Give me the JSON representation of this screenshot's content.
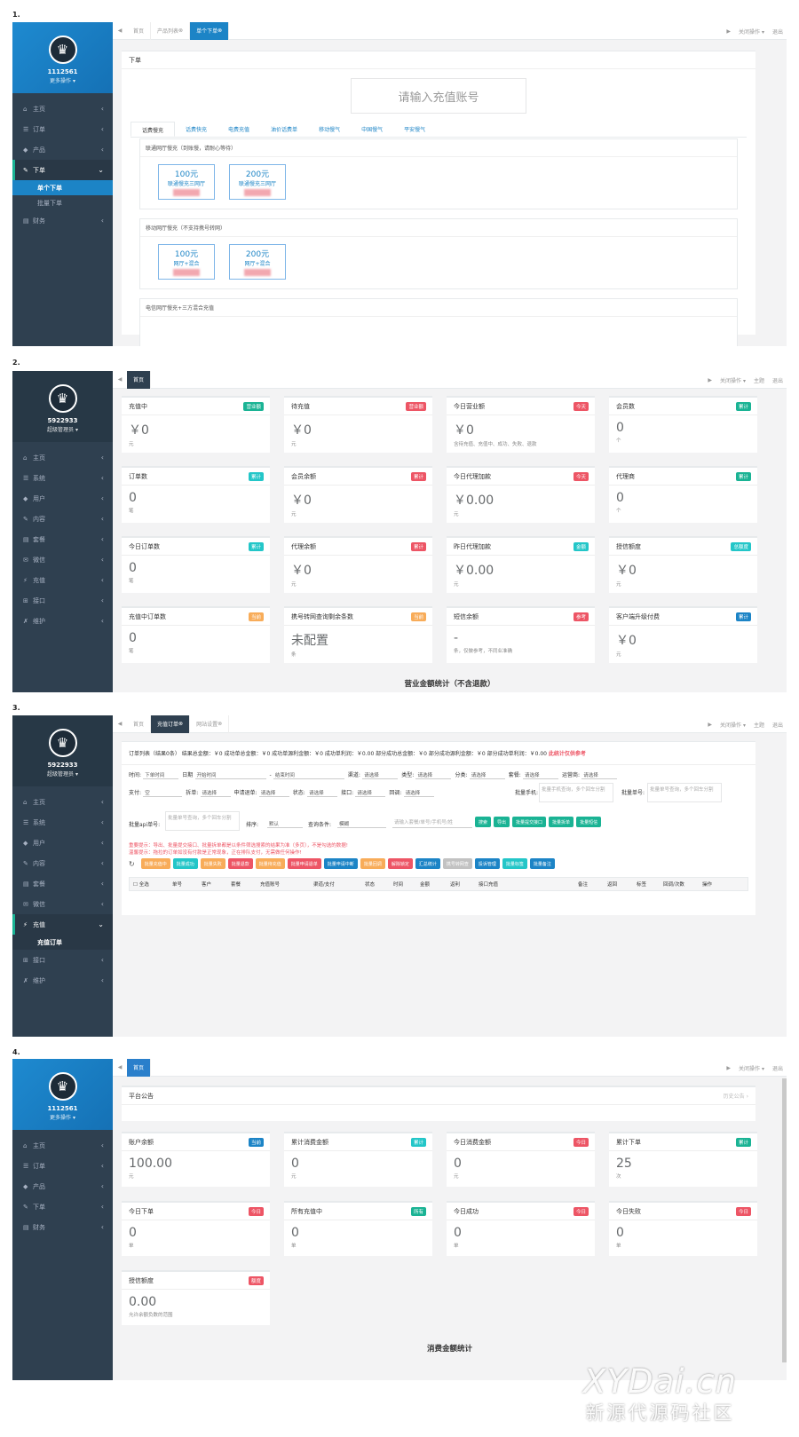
{
  "labels": [
    "1.",
    "2.",
    "3.",
    "4."
  ],
  "p1": {
    "user": "1112561",
    "role": "更多操作",
    "menu": [
      "主页",
      "订单",
      "产品",
      "下单",
      "财务"
    ],
    "sub": [
      "单个下单",
      "批量下单"
    ],
    "tabs": [
      "首页",
      "产品列表",
      "单个下单"
    ],
    "right": [
      "关闭操作",
      "退出"
    ],
    "card_title": "下单",
    "placeholder": "请输入充值账号",
    "cats": [
      "话费慢充",
      "话费快充",
      "电费充值",
      "油价话费单",
      "移动慢气",
      "中国慢气",
      "平安慢气"
    ],
    "sections": [
      {
        "title": "联通网厅慢充（到账慢，请耐心等待）",
        "items": [
          {
            "amt": "100元",
            "desc": "联通慢充三网厅"
          },
          {
            "amt": "200元",
            "desc": "联通慢充三网厅"
          }
        ]
      },
      {
        "title": "移动网厅慢充（不支持携号转网）",
        "items": [
          {
            "amt": "100元",
            "desc": "网厅+混合"
          },
          {
            "amt": "200元",
            "desc": "网厅+混合"
          }
        ]
      },
      {
        "title": "电信网厅慢充+三方混合充值",
        "items": []
      }
    ]
  },
  "p2": {
    "user": "5922933",
    "role": "超级管理员",
    "menu": [
      "主页",
      "系统",
      "用户",
      "内容",
      "套餐",
      "微信",
      "充值",
      "接口",
      "维护"
    ],
    "tabs": [
      "首页"
    ],
    "right": [
      "关闭操作",
      "主题",
      "退出"
    ],
    "cards": [
      {
        "t": "充值中",
        "b": "营业额",
        "c": "g",
        "v": "￥0",
        "u": "元"
      },
      {
        "t": "待充值",
        "b": "营业额",
        "c": "r",
        "v": "￥0",
        "u": "元"
      },
      {
        "t": "今日营业额",
        "b": "今天",
        "c": "r",
        "v": "￥0",
        "u": "含待充值、充值中、成功、失败、退款"
      },
      {
        "t": "会员数",
        "b": "累计",
        "c": "g",
        "v": "0",
        "u": "个"
      },
      {
        "t": "订单数",
        "b": "累计",
        "c": "c",
        "v": "0",
        "u": "笔"
      },
      {
        "t": "会员余额",
        "b": "累计",
        "c": "r",
        "v": "￥0",
        "u": "元"
      },
      {
        "t": "今日代理加款",
        "b": "今天",
        "c": "r",
        "v": "￥0.00",
        "u": "元"
      },
      {
        "t": "代理商",
        "b": "累计",
        "c": "g",
        "v": "0",
        "u": "个"
      },
      {
        "t": "今日订单数",
        "b": "累计",
        "c": "c",
        "v": "0",
        "u": "笔"
      },
      {
        "t": "代理余额",
        "b": "累计",
        "c": "r",
        "v": "￥0",
        "u": "元"
      },
      {
        "t": "昨日代理加款",
        "b": "金额",
        "c": "c",
        "v": "￥0.00",
        "u": "元"
      },
      {
        "t": "授信额度",
        "b": "总额度",
        "c": "c",
        "v": "￥0",
        "u": "元"
      },
      {
        "t": "充值中订单数",
        "b": "当前",
        "c": "y",
        "v": "0",
        "u": "笔"
      },
      {
        "t": "携号转网查询剩余条数",
        "b": "当前",
        "c": "y",
        "v": "未配置",
        "u": "条"
      },
      {
        "t": "短信余额",
        "b": "参考",
        "c": "r",
        "v": "-",
        "u": "条，仅做参考，不同业准确"
      },
      {
        "t": "客户端升级付费",
        "b": "累计",
        "c": "b",
        "v": "￥0",
        "u": "元"
      }
    ],
    "section": "营业金额统计（不含退款）"
  },
  "p3": {
    "user": "5922933",
    "role": "超级管理员",
    "menu": [
      "主页",
      "系统",
      "用户",
      "内容",
      "套餐",
      "微信",
      "充值",
      "接口",
      "维护"
    ],
    "sub": "充值订单",
    "tabs": [
      "首页",
      "充值订单",
      "网站设置"
    ],
    "right": [
      "关闭操作",
      "主题",
      "退出"
    ],
    "summary": "订单列表（结果0条） 结果总金额：￥0 成功单总金额：￥0 成功单源利金额：￥0 成功单利润：￥0.00 部分成功总金额：￥0 部分成功源利金额：￥0 部分成功单利润：￥0.00",
    "summary_red": "此统计仅供参考",
    "row1": [
      {
        "l": "时间:",
        "v": "下单时间"
      },
      {
        "l": "日期",
        "v": "开始时间"
      },
      {
        "l": "-",
        "v": "结束时间"
      },
      {
        "l": "渠道:",
        "v": "请选择"
      },
      {
        "l": "类型:",
        "v": "请选择"
      },
      {
        "l": "分类:",
        "v": "请选择"
      },
      {
        "l": "套餐:",
        "v": "请选择"
      },
      {
        "l": "运营商:",
        "v": "请选择"
      }
    ],
    "row2": [
      {
        "l": "支付:",
        "v": "空"
      },
      {
        "l": "拆单:",
        "v": "请选择"
      },
      {
        "l": "申请退单:",
        "v": "请选择"
      },
      {
        "l": "状态:",
        "v": "请选择"
      },
      {
        "l": "接口:",
        "v": "请选择"
      },
      {
        "l": "回调:",
        "v": "请选择"
      }
    ],
    "batch_phone_label": "批量手机:",
    "batch_phone_ph": "批量手机查询，多个回车分割",
    "batch_no_label": "批量单号:",
    "batch_no_ph": "批量单号查询，多个回车分割",
    "api_label": "批量api单号:",
    "api_ph": "批量单号查询，多个回车分割",
    "sort_label": "排序:",
    "sort_v": "默认",
    "cond_label": "查询条件:",
    "cond_v": "模糊",
    "search_ph": "请输入套餐/单号/手机号/姓",
    "actions": [
      {
        "t": "搜索",
        "c": "g"
      },
      {
        "t": "导出",
        "c": "g"
      },
      {
        "t": "批量提交接口",
        "c": "g"
      },
      {
        "t": "批量拆单",
        "c": "g"
      },
      {
        "t": "批量短信",
        "c": "g"
      }
    ],
    "warn1": "重要提示：导出、批量提交接口、批量拆单都是以条件筛选搜索的结果为准（多页），不是勾选的数据!",
    "warn2": "温馨提示：拖拉的订单如没有付款是正常现象，正在排队支付，无需做任何操作!",
    "btns": [
      {
        "t": "批量充值中",
        "c": "y"
      },
      {
        "t": "批量成功",
        "c": "c"
      },
      {
        "t": "批量失败",
        "c": "y"
      },
      {
        "t": "批量退款",
        "c": "r"
      },
      {
        "t": "批量待充值",
        "c": "y"
      },
      {
        "t": "批量申请退单",
        "c": "r"
      },
      {
        "t": "批量申请中断",
        "c": "b"
      },
      {
        "t": "批量回调",
        "c": "y"
      },
      {
        "t": "解除锁定",
        "c": "r"
      },
      {
        "t": "汇总统计",
        "c": "b"
      },
      {
        "t": "携号转网查",
        "c": "x"
      },
      {
        "t": "投诉管理",
        "c": "b"
      },
      {
        "t": "批量标签",
        "c": "c"
      },
      {
        "t": "批量备注",
        "c": "b"
      }
    ],
    "cols": [
      "全选",
      "单号",
      "客户",
      "套餐",
      "充值账号",
      "渠道/支付",
      "状态",
      "时间",
      "金额",
      "返利",
      "接口充值",
      "备注",
      "返回",
      "标签",
      "回调/次数",
      "操作"
    ]
  },
  "p4": {
    "user": "1112561",
    "role": "更多操作",
    "menu": [
      "主页",
      "订单",
      "产品",
      "下单",
      "财务"
    ],
    "tabs": [
      "首页"
    ],
    "right": [
      "关闭操作",
      "退出"
    ],
    "notice": "平台公告",
    "notice_right": "历史公告",
    "cards": [
      {
        "t": "账户余额",
        "b": "当前",
        "c": "b",
        "v": "100.00",
        "u": "元"
      },
      {
        "t": "累计消费金额",
        "b": "累计",
        "c": "c",
        "v": "0",
        "u": "元"
      },
      {
        "t": "今日消费金额",
        "b": "今日",
        "c": "r",
        "v": "0",
        "u": "元"
      },
      {
        "t": "累计下单",
        "b": "累计",
        "c": "g",
        "v": "25",
        "u": "次"
      },
      {
        "t": "今日下单",
        "b": "今日",
        "c": "r",
        "v": "0",
        "u": "单"
      },
      {
        "t": "所有充值中",
        "b": "所有",
        "c": "g",
        "v": "0",
        "u": "单"
      },
      {
        "t": "今日成功",
        "b": "今日",
        "c": "r",
        "v": "0",
        "u": "单"
      },
      {
        "t": "今日失败",
        "b": "今日",
        "c": "r",
        "v": "0",
        "u": "单"
      },
      {
        "t": "授信额度",
        "b": "额度",
        "c": "r",
        "v": "0.00",
        "u": "允许余额负数的范围"
      }
    ],
    "section": "消费金额统计"
  },
  "watermark": {
    "line1": "XYDai.cn",
    "line2": "新源代源码社区"
  },
  "colors": {
    "sidebar": "#2f4050",
    "blue": "#1c84c6",
    "green": "#1ab394",
    "red": "#ed5565",
    "yellow": "#f8ac59",
    "cyan": "#23c6c8"
  }
}
